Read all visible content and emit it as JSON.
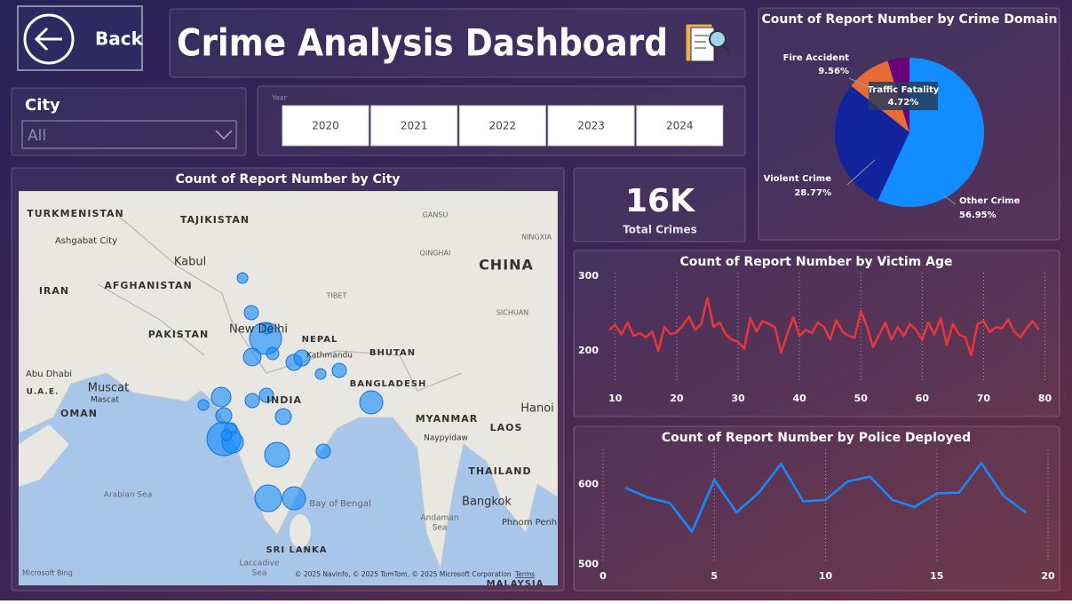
{
  "header": {
    "back": "Back",
    "title": "Crime Analysis Dashboard"
  },
  "filters": {
    "city": {
      "label": "City",
      "value": "All"
    },
    "year": {
      "label": "Year",
      "options": [
        "2020",
        "2021",
        "2022",
        "2023",
        "2024"
      ]
    }
  },
  "map": {
    "title": "Count of Report Number by City",
    "labels": [
      "TURKMENISTAN",
      "TAJIKISTAN",
      "Ashgabat City",
      "Kabul",
      "AFGHANISTAN",
      "IRAN",
      "PAKISTAN",
      "CHINA",
      "GANSU",
      "QINGHAI",
      "TIBET",
      "NINGXIA",
      "SICHUAN",
      "New Delhi",
      "NEPAL",
      "Kathmandu",
      "BHUTAN",
      "INDIA",
      "BANGLADESH",
      "Abu Dhabi",
      "U.A.E.",
      "Muscat",
      "Mascat",
      "OMAN",
      "MYANMAR",
      "Naypyidaw",
      "LAOS",
      "Hanoi",
      "THAILAND",
      "Bangkok",
      "Phnom Penh",
      "Arabian Sea",
      "Bay of Bengal",
      "Andaman",
      "Sea",
      "SRI LANKA",
      "Laccadive",
      "Sea",
      "MALAYSIA"
    ],
    "bing": "Microsoft Bing",
    "attribution": "© 2025 NavInfo, © 2025 TomTom, © 2025 Microsoft Corporation",
    "terms": "Terms"
  },
  "kpi": {
    "value": "16K",
    "label": "Total Crimes"
  },
  "chart_data": [
    {
      "type": "pie",
      "title": "Count of Report Number by Crime Domain",
      "categories": [
        "Other Crime",
        "Violent Crime",
        "Fire Accident",
        "Traffic Fatality"
      ],
      "values": [
        56.95,
        28.77,
        9.56,
        4.72
      ],
      "value_labels": [
        "56.95%",
        "28.77%",
        "9.56%",
        "4.72%"
      ],
      "colors": [
        "#118dff",
        "#12239e",
        "#e66c37",
        "#6b007b"
      ]
    },
    {
      "type": "line",
      "title": "Count of Report Number by Victim Age",
      "color": "#e8363a",
      "x": [
        9,
        10,
        11,
        12,
        13,
        14,
        15,
        16,
        17,
        18,
        19,
        20,
        21,
        22,
        23,
        24,
        25,
        26,
        27,
        28,
        29,
        30,
        31,
        32,
        33,
        34,
        35,
        36,
        37,
        38,
        39,
        40,
        41,
        42,
        43,
        44,
        45,
        46,
        47,
        48,
        49,
        50,
        51,
        52,
        53,
        54,
        55,
        56,
        57,
        58,
        59,
        60,
        61,
        62,
        63,
        64,
        65,
        66,
        67,
        68,
        69,
        70,
        71,
        72,
        73,
        74,
        75,
        76,
        77,
        78,
        79
      ],
      "values": [
        228,
        235,
        222,
        238,
        220,
        224,
        218,
        226,
        200,
        232,
        222,
        225,
        234,
        246,
        228,
        236,
        271,
        232,
        238,
        222,
        215,
        212,
        203,
        244,
        226,
        240,
        236,
        232,
        198,
        222,
        245,
        220,
        228,
        224,
        238,
        232,
        215,
        241,
        226,
        220,
        218,
        253,
        232,
        205,
        222,
        238,
        215,
        232,
        220,
        236,
        228,
        215,
        238,
        222,
        244,
        208,
        236,
        222,
        218,
        194,
        236,
        240,
        225,
        232,
        230,
        242,
        226,
        218,
        230,
        240,
        228
      ],
      "xlim": [
        8,
        80.5
      ],
      "ylim": [
        145,
        305
      ],
      "xticks": [
        10,
        20,
        30,
        40,
        50,
        60,
        70,
        80
      ],
      "yticks": [
        200,
        300
      ],
      "grid": true
    },
    {
      "type": "line",
      "title": "Count of Report Number by Police Deployed",
      "color": "#118dff",
      "x": [
        1,
        2,
        3,
        4,
        5,
        6,
        7,
        8,
        9,
        10,
        11,
        12,
        13,
        14,
        15,
        16,
        17,
        18,
        19
      ],
      "values": [
        596,
        584,
        577,
        541,
        606,
        565,
        590,
        626,
        579,
        581,
        604,
        610,
        581,
        572,
        589,
        590,
        627,
        586,
        565
      ],
      "xlim": [
        0,
        20
      ],
      "ylim": [
        494,
        644
      ],
      "xticks": [
        0,
        5,
        10,
        15,
        20
      ],
      "yticks": [
        500,
        600
      ],
      "grid": true
    }
  ]
}
